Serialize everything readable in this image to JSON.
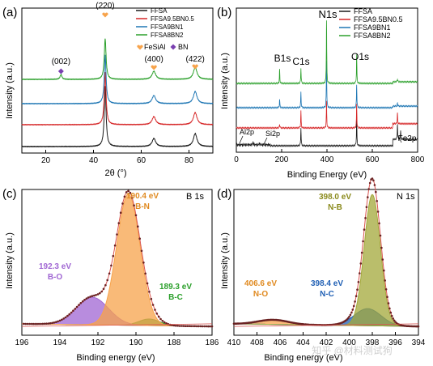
{
  "watermark": "知乎 @材料测试狗",
  "colors": {
    "black": "#1a1a1a",
    "red": "#d62728",
    "blue": "#1f77b4",
    "green": "#2ca02c",
    "orange": "#f7a34b",
    "purple": "#a066d3",
    "olive": "#a3a83a",
    "navy": "#1f5fb4",
    "envelope": "#d9534f",
    "fit": "#7a2a2a",
    "point": "#6a2222"
  },
  "chart_data": [
    {
      "id": "a",
      "type": "line",
      "panel_label": "(a)",
      "xlabel": "2θ (°)",
      "ylabel": "Intensity (a.u.)",
      "xlim": [
        10,
        90
      ],
      "xticks": [
        20,
        40,
        60,
        80
      ],
      "legend": [
        "FFSA",
        "FFSA9.5BN0.5",
        "FFSA9BN1",
        "FFSA8BN2"
      ],
      "legend_position": "top-right",
      "marker_legend": [
        {
          "symbol": "heart",
          "label": "FeSiAl"
        },
        {
          "symbol": "diamond",
          "label": "BN"
        }
      ],
      "series": [
        {
          "name": "FFSA",
          "peaks": [
            [
              44.9,
              7.5
            ],
            [
              65.3,
              1.0
            ],
            [
              82.6,
              1.6
            ]
          ]
        },
        {
          "name": "FFSA9.5BN0.5",
          "peaks": [
            [
              44.9,
              6.5
            ],
            [
              65.3,
              1.0
            ],
            [
              82.6,
              1.5
            ]
          ]
        },
        {
          "name": "FFSA9BN1",
          "peaks": [
            [
              44.9,
              6.0
            ],
            [
              65.3,
              1.0
            ],
            [
              82.6,
              1.5
            ]
          ]
        },
        {
          "name": "FFSA8BN2",
          "peaks": [
            [
              26.4,
              0.6
            ],
            [
              44.9,
              5.0
            ],
            [
              65.3,
              1.0
            ],
            [
              82.6,
              1.5
            ]
          ]
        }
      ],
      "annotations": [
        "(220)",
        "(002)",
        "(400)",
        "(422)"
      ]
    },
    {
      "id": "b",
      "type": "line",
      "panel_label": "(b)",
      "xlabel": "Binding Energy (eV)",
      "ylabel": "Intensity (a.u.)",
      "xlim": [
        0,
        800
      ],
      "xticks": [
        0,
        200,
        400,
        600,
        800
      ],
      "legend": [
        "FFSA",
        "FFSA9.5BN0.5",
        "FFSA9BN1",
        "FFSA8BN2"
      ],
      "legend_position": "top-right",
      "series": [
        {
          "name": "FFSA",
          "peaks": [
            [
              74,
              0.6
            ],
            [
              102,
              0.4
            ],
            [
              285,
              3.5
            ],
            [
              531,
              5.5
            ],
            [
              711,
              3.0
            ],
            [
              725,
              1.8
            ]
          ]
        },
        {
          "name": "FFSA9.5BN0.5",
          "peaks": [
            [
              191,
              0.8
            ],
            [
              285,
              3.2
            ],
            [
              398,
              5.0
            ],
            [
              531,
              4.5
            ],
            [
              711,
              2.0
            ]
          ]
        },
        {
          "name": "FFSA9BN1",
          "peaks": [
            [
              191,
              1.6
            ],
            [
              285,
              3.0
            ],
            [
              398,
              9.0
            ],
            [
              531,
              4.5
            ],
            [
              711,
              0.6
            ]
          ]
        },
        {
          "name": "FFSA8BN2",
          "peaks": [
            [
              191,
              2.6
            ],
            [
              285,
              3.0
            ],
            [
              398,
              12.0
            ],
            [
              531,
              5.5
            ],
            [
              711,
              0.6
            ]
          ]
        }
      ],
      "annotations": [
        "N1s",
        "B1s",
        "C1s",
        "O1s",
        "Al2p",
        "Si2p",
        "Fe2p"
      ]
    },
    {
      "id": "c",
      "type": "area",
      "panel_label": "(c)",
      "title_in_plot": "B 1s",
      "xlabel": "Binding energy (eV)",
      "ylabel": "Intensity (a.u.)",
      "xlim": [
        196,
        186
      ],
      "xticks": [
        196,
        194,
        192,
        190,
        188,
        186
      ],
      "components": [
        {
          "label_ev": "190.4 eV",
          "label_bond": "B-N",
          "center": 190.4,
          "amp": 1.0,
          "width": 0.62,
          "color": "#f7a34b"
        },
        {
          "label_ev": "192.3 eV",
          "label_bond": "B-O",
          "center": 192.3,
          "amp": 0.21,
          "width": 0.85,
          "color": "#a066d3"
        },
        {
          "label_ev": "189.3 eV",
          "label_bond": "B-C",
          "center": 189.3,
          "amp": 0.05,
          "width": 0.55,
          "color": "#2ca02c"
        }
      ]
    },
    {
      "id": "d",
      "type": "area",
      "panel_label": "(d)",
      "title_in_plot": "N 1s",
      "xlabel": "Binding energy (eV)",
      "ylabel": "Intensity (a.u.)",
      "xlim": [
        410,
        394
      ],
      "xticks": [
        410,
        408,
        406,
        404,
        402,
        400,
        398,
        396,
        394
      ],
      "components": [
        {
          "label_ev": "398.0 eV",
          "label_bond": "N-B",
          "center": 398.0,
          "amp": 1.0,
          "width": 0.7,
          "color": "#a3a83a"
        },
        {
          "label_ev": "398.4 eV",
          "label_bond": "N-C",
          "center": 398.4,
          "amp": 0.13,
          "width": 1.15,
          "color": "#1f5fb4"
        },
        {
          "label_ev": "406.6 eV",
          "label_bond": "N-O",
          "center": 406.6,
          "amp": 0.035,
          "width": 1.3,
          "color": "#f7a34b"
        }
      ]
    }
  ]
}
